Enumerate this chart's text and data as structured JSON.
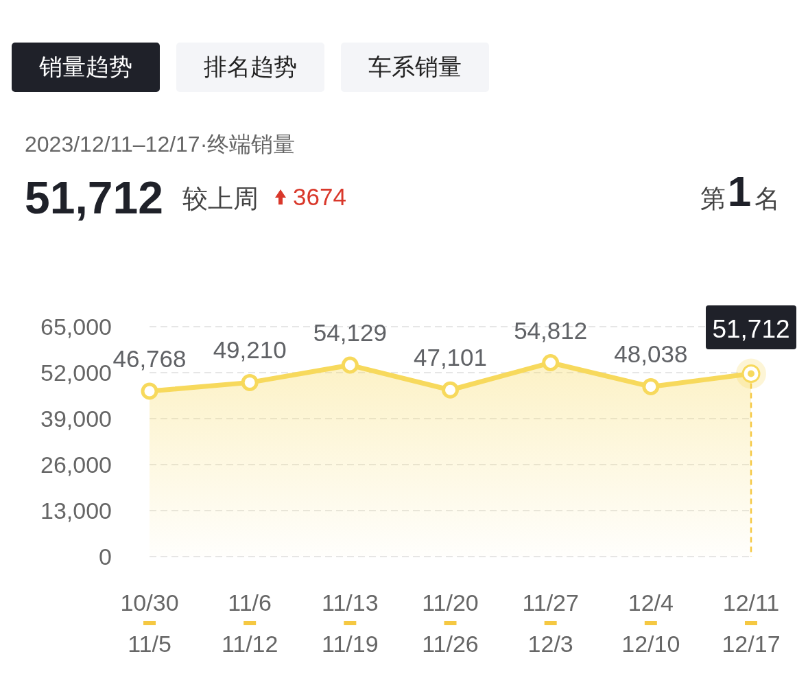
{
  "chart_data": {
    "type": "area",
    "categories": [
      "10/30\n11/5",
      "11/6\n11/12",
      "11/13\n11/19",
      "11/20\n11/26",
      "11/27\n12/3",
      "12/4\n12/10",
      "12/11\n12/17"
    ],
    "series": [
      {
        "color": "#f7d95c",
        "values": [
          46768,
          49210,
          54129,
          47101,
          54812,
          48038,
          51712
        ],
        "value_labels": [
          "46,768",
          "49,210",
          "54,129",
          "47,101",
          "54,812",
          "48,038",
          "51,712"
        ]
      }
    ],
    "ylim": [
      0,
      65000
    ],
    "yticks": [
      0,
      {
        "value": 13000,
        "label": "13,000"
      },
      {
        "value": 26000,
        "label": "26,000"
      },
      {
        "value": 39000,
        "label": "39,000"
      },
      {
        "value": 52000,
        "label": "52,000"
      },
      {
        "value": 65000,
        "label": "65,000"
      }
    ],
    "grid": "y",
    "marker": "circle",
    "line_style": "solid",
    "ref_lines": [
      {
        "axis": "x",
        "value": "12/11\n12/17",
        "color": "#f5c842",
        "line_style": "dashed"
      }
    ],
    "annotations": [
      "销量趋势",
      "排名趋势",
      "车系销量",
      "2023/12/11–12/17·终端销量",
      "51,712",
      "较上周",
      "3674",
      "第",
      "1",
      "名"
    ]
  }
}
